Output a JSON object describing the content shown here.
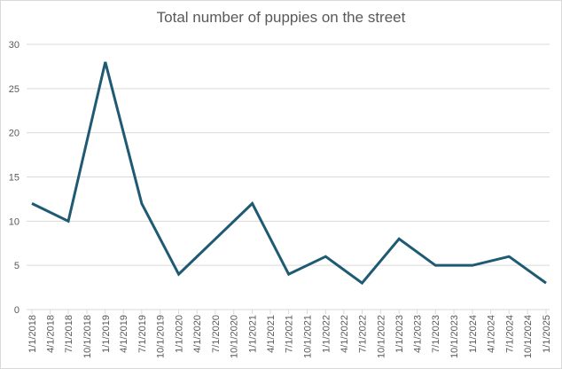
{
  "chart_data": {
    "type": "line",
    "title": "Total number of puppies on the street",
    "xlabel": "",
    "ylabel": "",
    "ylim": [
      0,
      30
    ],
    "yticks": [
      0,
      5,
      10,
      15,
      20,
      25,
      30
    ],
    "grid": true,
    "legend": "none",
    "x_tick_labels": [
      "1/1/2018",
      "4/1/2018",
      "7/1/2018",
      "10/1/2018",
      "1/1/2019",
      "4/1/2019",
      "7/1/2019",
      "10/1/2019",
      "1/1/2020",
      "4/1/2020",
      "7/1/2020",
      "10/1/2020",
      "1/1/2021",
      "4/1/2021",
      "7/1/2021",
      "10/1/2021",
      "1/1/2022",
      "4/1/2022",
      "7/1/2022",
      "10/1/2022",
      "1/1/2023",
      "4/1/2023",
      "7/1/2023",
      "10/1/2023",
      "1/1/2024",
      "4/1/2024",
      "7/1/2024",
      "10/1/2024",
      "1/1/2025"
    ],
    "series": [
      {
        "name": "Total number of puppies on the street",
        "color": "#1f5a73",
        "x": [
          "1/1/2018",
          "7/1/2018",
          "1/1/2019",
          "7/1/2019",
          "1/1/2020",
          "1/1/2021",
          "7/1/2021",
          "1/1/2022",
          "7/1/2022",
          "1/1/2023",
          "7/1/2023",
          "1/1/2024",
          "7/1/2024",
          "1/1/2025"
        ],
        "values": [
          12,
          10,
          28,
          12,
          4,
          12,
          4,
          6,
          3,
          8,
          5,
          5,
          6,
          3
        ]
      }
    ]
  }
}
